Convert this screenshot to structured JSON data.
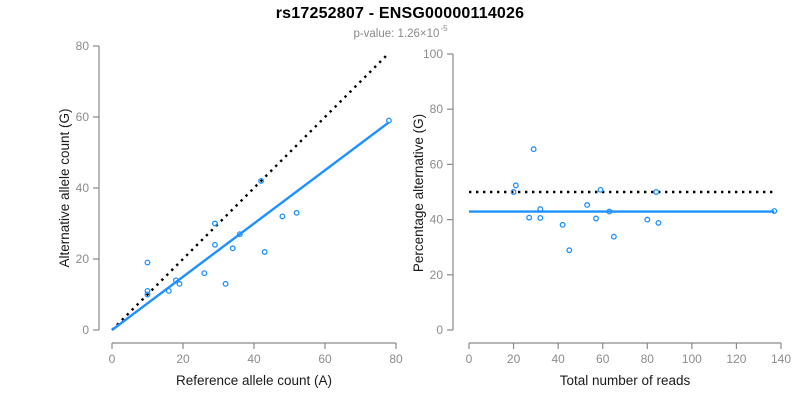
{
  "header": {
    "title": "rs17252807 - ENSG00000114026",
    "subtitle_prefix": "p-value: 1.26×10",
    "subtitle_exponent": "-5"
  },
  "colors": {
    "accent_blue": "#1E90FF",
    "axis_line_gray": "#8a8a8a",
    "tick_label_gray": "#8c8c8c",
    "axis_title_black": "#1a1a1a",
    "title_black": "#000000",
    "subtitle_gray": "#8a8a8a",
    "reference_line_black": "#000000"
  },
  "chart_data": [
    {
      "id": "allele-count-scatter",
      "type": "scatter",
      "title": "",
      "xlabel": "Reference allele count (A)",
      "ylabel": "Alternative allele count (G)",
      "xlim": [
        0,
        80
      ],
      "ylim": [
        0,
        80
      ],
      "xticks": [
        0,
        20,
        40,
        60,
        80
      ],
      "yticks": [
        0,
        20,
        40,
        60,
        80
      ],
      "grid": false,
      "points": [
        [
          10,
          19
        ],
        [
          10,
          11
        ],
        [
          10,
          10
        ],
        [
          16,
          11
        ],
        [
          18,
          14
        ],
        [
          19,
          13
        ],
        [
          26,
          16
        ],
        [
          29,
          30
        ],
        [
          29,
          24
        ],
        [
          32,
          13
        ],
        [
          34,
          23
        ],
        [
          36,
          27
        ],
        [
          43,
          22
        ],
        [
          48,
          32
        ],
        [
          52,
          33
        ],
        [
          42,
          42
        ],
        [
          78,
          59
        ]
      ],
      "lines": [
        {
          "name": "identity-line",
          "style": "dotted",
          "color": "black",
          "from": [
            0,
            0
          ],
          "to": [
            77.5,
            77.5
          ]
        },
        {
          "name": "fit-line",
          "style": "solid",
          "color": "blue",
          "from": [
            0,
            0
          ],
          "to": [
            78,
            58.5
          ]
        }
      ]
    },
    {
      "id": "percentage-reads-scatter",
      "type": "scatter",
      "title": "",
      "xlabel": "Total number of reads",
      "ylabel": "Percentage alternative (G)",
      "xlim": [
        0,
        140
      ],
      "ylim": [
        0,
        100
      ],
      "xticks": [
        0,
        20,
        40,
        60,
        80,
        100,
        120,
        140
      ],
      "yticks": [
        0,
        20,
        40,
        60,
        80,
        100
      ],
      "grid": false,
      "points": [
        [
          29,
          65.5
        ],
        [
          21,
          52.4
        ],
        [
          20,
          50
        ],
        [
          27,
          40.7
        ],
        [
          32,
          43.8
        ],
        [
          32,
          40.6
        ],
        [
          42,
          38.1
        ],
        [
          59,
          50.8
        ],
        [
          53,
          45.3
        ],
        [
          45,
          28.9
        ],
        [
          57,
          40.4
        ],
        [
          63,
          42.9
        ],
        [
          65,
          33.8
        ],
        [
          80,
          40
        ],
        [
          85,
          38.8
        ],
        [
          84,
          50
        ],
        [
          137,
          43.1
        ]
      ],
      "lines": [
        {
          "name": "reference-line-50pct",
          "style": "dotted",
          "color": "black",
          "from": [
            0,
            50
          ],
          "to": [
            137,
            50
          ]
        },
        {
          "name": "fit-line",
          "style": "solid",
          "color": "blue",
          "from": [
            0,
            42.9
          ],
          "to": [
            137,
            42.9
          ]
        }
      ]
    }
  ]
}
